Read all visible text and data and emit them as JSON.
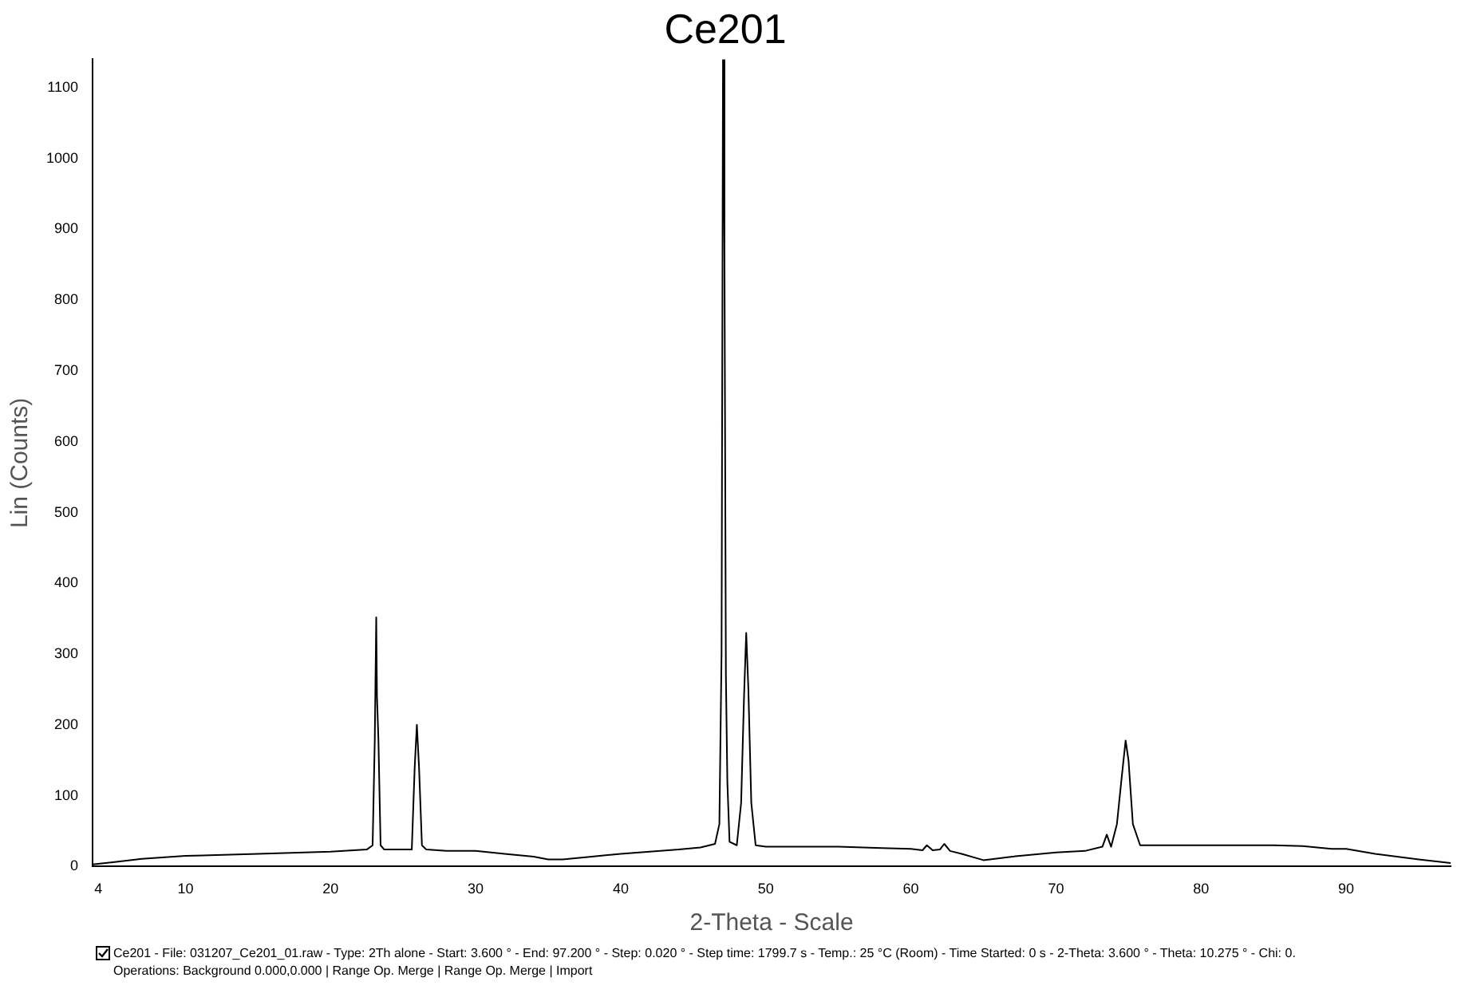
{
  "chart_data": {
    "type": "line",
    "title": "Ce201",
    "xlabel": "2-Theta - Scale",
    "ylabel": "Lin (Counts)",
    "x": [
      3.6,
      5,
      7,
      10,
      15,
      20,
      22.5,
      22.9,
      23.05,
      23.15,
      23.2,
      23.3,
      23.45,
      23.7,
      25.6,
      25.8,
      25.95,
      26.1,
      26.3,
      26.6,
      28,
      30,
      32,
      34,
      35,
      36,
      38,
      40,
      42,
      44,
      45.5,
      46.5,
      46.8,
      46.95,
      47.05,
      47.15,
      47.25,
      47.35,
      47.5,
      48,
      48.3,
      48.5,
      48.65,
      48.8,
      49,
      49.3,
      50,
      55,
      58,
      60,
      60.8,
      61.1,
      61.5,
      62,
      62.3,
      62.7,
      63.5,
      65,
      67,
      70,
      72,
      73.2,
      73.5,
      73.8,
      74.2,
      74.5,
      74.8,
      75,
      75.3,
      75.8,
      78,
      82,
      85,
      87,
      89,
      90,
      92,
      95,
      97.2
    ],
    "values": [
      3,
      6,
      11,
      15,
      18,
      21,
      24,
      30,
      180,
      352,
      240,
      180,
      30,
      24,
      24,
      140,
      200,
      140,
      30,
      24,
      22,
      22,
      18,
      14,
      10,
      10,
      14,
      18,
      21,
      24,
      27,
      32,
      60,
      300,
      1140,
      870,
      270,
      120,
      35,
      30,
      90,
      240,
      330,
      250,
      90,
      30,
      28,
      28,
      26,
      25,
      23,
      30,
      23,
      24,
      32,
      22,
      18,
      9,
      14,
      20,
      22,
      28,
      45,
      28,
      60,
      120,
      178,
      150,
      60,
      30,
      30,
      30,
      30,
      29,
      25,
      25,
      18,
      10,
      5
    ],
    "xlim": [
      3.6,
      97.2
    ],
    "ylim": [
      0,
      1140
    ],
    "xticks": [
      4,
      10,
      20,
      30,
      40,
      50,
      60,
      70,
      80,
      90
    ],
    "yticks": [
      0,
      100,
      200,
      300,
      400,
      500,
      600,
      700,
      800,
      900,
      1000,
      1100
    ],
    "color": "#000000",
    "grid": false,
    "legend": false,
    "marker": "none",
    "line_style": "solid",
    "annotations": [
      "Ce201 - File: 031207_Ce201_01.raw - Type: 2Th alone - Start: 3.600 ° - End: 97.200 ° - Step: 0.020 ° - Step time: 1799.7 s - Temp.: 25 °C (Room) - Time Started: 0 s - 2-Theta: 3.600 ° - Theta: 10.275 ° - Chi: 0.",
      "Operations: Background 0.000,0.000 | Range Op. Merge | Range Op. Merge | Import"
    ]
  }
}
